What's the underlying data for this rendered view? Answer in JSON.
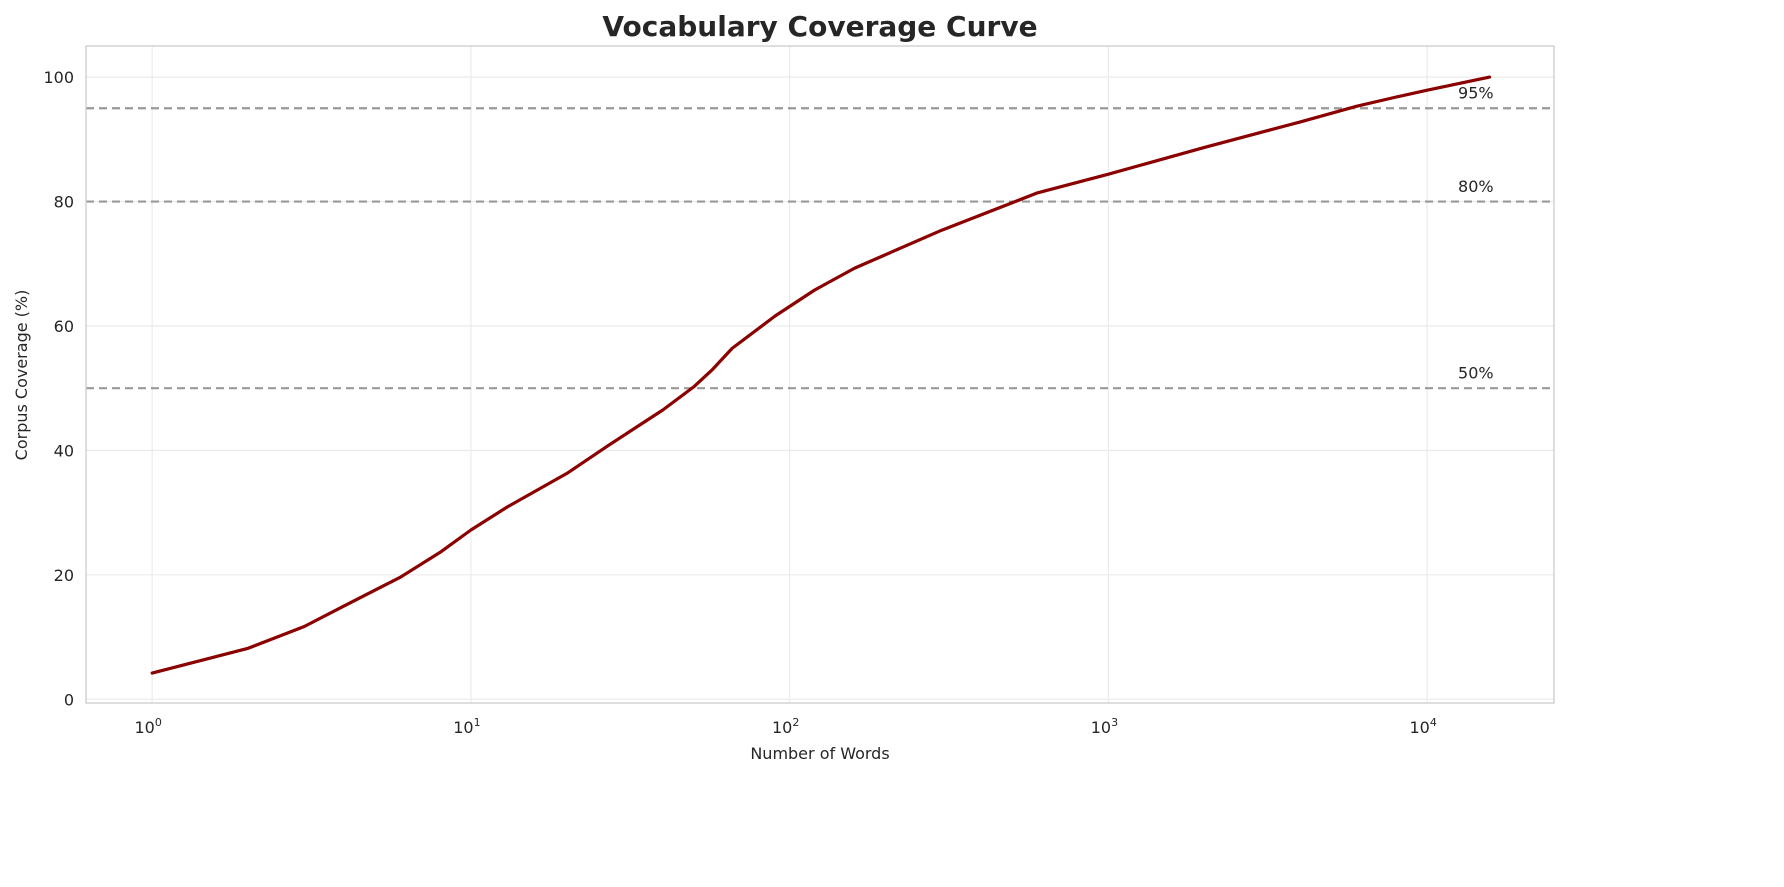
{
  "chart_data": {
    "type": "line",
    "title": "Vocabulary Coverage Curve",
    "xlabel": "Number of Words",
    "ylabel": "Corpus Coverage (%)",
    "xscale": "log",
    "xlim": [
      0.62,
      25000
    ],
    "ylim": [
      -0.6,
      105
    ],
    "grid": true,
    "x_ticks": [
      1,
      10,
      100,
      1000,
      10000
    ],
    "x_tick_labels": [
      {
        "base": "10",
        "exp": "0"
      },
      {
        "base": "10",
        "exp": "1"
      },
      {
        "base": "10",
        "exp": "2"
      },
      {
        "base": "10",
        "exp": "3"
      },
      {
        "base": "10",
        "exp": "4"
      }
    ],
    "y_ticks": [
      0,
      20,
      40,
      60,
      80,
      100
    ],
    "y_tick_labels": [
      "0",
      "20",
      "40",
      "60",
      "80",
      "100"
    ],
    "line_color": "#8b0000",
    "series": [
      {
        "x": [
          1,
          2,
          3,
          4,
          6,
          8,
          10,
          13,
          20,
          27,
          40,
          50,
          57,
          66,
          90,
          120,
          160,
          300,
          600,
          1000,
          2000,
          4000,
          6000,
          8000,
          10000,
          15700
        ],
        "y": [
          4.2,
          8.2,
          11.7,
          15.0,
          19.6,
          23.6,
          27.2,
          30.9,
          36.3,
          40.8,
          46.5,
          50.2,
          52.9,
          56.4,
          61.6,
          65.8,
          69.3,
          75.4,
          81.4,
          84.4,
          88.7,
          92.8,
          95.3,
          96.8,
          97.9,
          100
        ]
      }
    ],
    "reference_lines": [
      {
        "y": 95,
        "label": "95%",
        "color": "#999999",
        "style": "dashed"
      },
      {
        "y": 80,
        "label": "80%",
        "color": "#999999",
        "style": "dashed"
      },
      {
        "y": 50,
        "label": "50%",
        "color": "#999999",
        "style": "dashed"
      }
    ],
    "reference_label_x": 12500
  }
}
